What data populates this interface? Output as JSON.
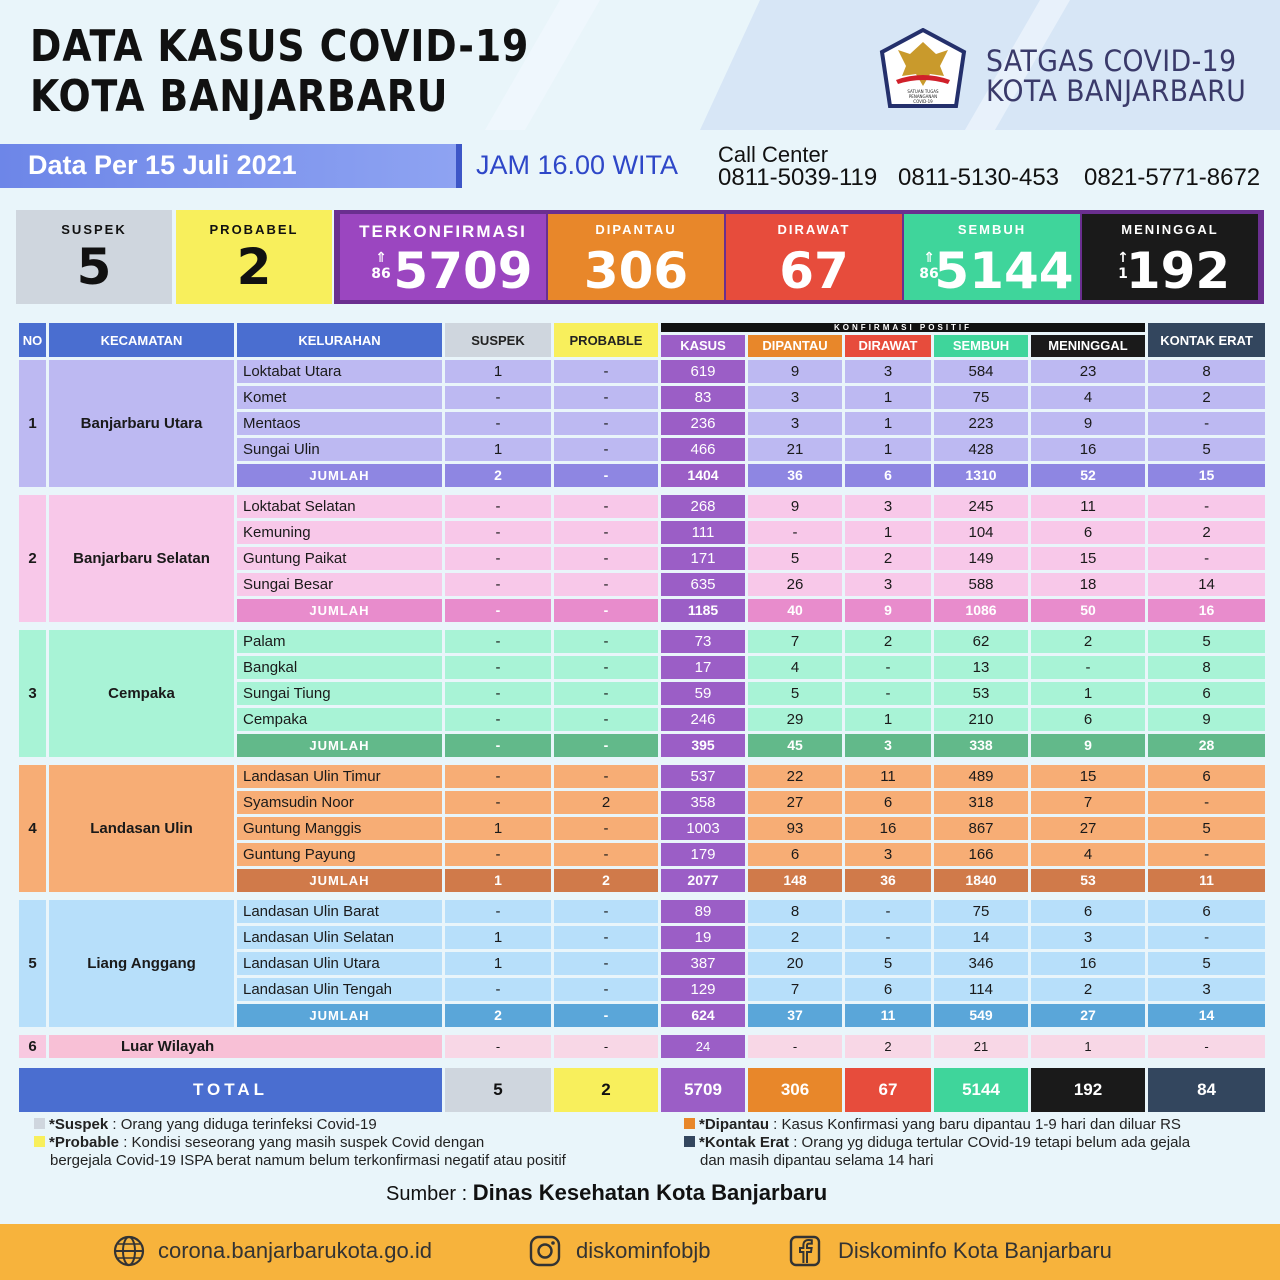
{
  "header": {
    "title_line1": "DATA KASUS COVID-19",
    "title_line2": "KOTA BANJARBARU",
    "org_line1": "SATGAS COVID-19",
    "org_line2": "KOTA BANJARBARU",
    "logo_text": "SATUAN TUGAS PENANGANAN COVID-19",
    "date": "Data Per 15 Juli 2021",
    "time": "JAM 16.00 WITA",
    "call_center_label": "Call Center",
    "call_center_numbers": [
      "0811-5039-119",
      "0811-5130-453",
      "0821-5771-8672"
    ]
  },
  "stats": {
    "suspek": {
      "label": "SUSPEK",
      "value": "5"
    },
    "probabel": {
      "label": "PROBABEL",
      "value": "2"
    },
    "terkonfirmasi": {
      "label": "TERKONFIRMASI",
      "value": "5709",
      "change": "86"
    },
    "dipantau": {
      "label": "DIPANTAU",
      "value": "306"
    },
    "dirawat": {
      "label": "DIRAWAT",
      "value": "67"
    },
    "sembuh": {
      "label": "SEMBUH",
      "value": "5144",
      "change": "86"
    },
    "meninggal": {
      "label": "MENINGGAL",
      "value": "192",
      "change": "1"
    }
  },
  "table": {
    "headers": {
      "no": "NO",
      "kecamatan": "KECAMATAN",
      "kelurahan": "KELURAHAN",
      "suspek": "SUSPEK",
      "probable": "PROBABLE",
      "konfirmasi_positif": "KONFIRMASI POSITIF",
      "kasus": "KASUS",
      "dipantau": "DIPANTAU",
      "dirawat": "DIRAWAT",
      "sembuh": "SEMBUH",
      "meninggal": "MENINGGAL",
      "kontak_erat": "KONTAK ERAT"
    },
    "groups": [
      {
        "no": "1",
        "kecamatan": "Banjarbaru Utara",
        "rows": [
          [
            "Loktabat Utara",
            "1",
            "-",
            "619",
            "9",
            "3",
            "584",
            "23",
            "8"
          ],
          [
            "Komet",
            "-",
            "-",
            "83",
            "3",
            "1",
            "75",
            "4",
            "2"
          ],
          [
            "Mentaos",
            "-",
            "-",
            "236",
            "3",
            "1",
            "223",
            "9",
            "-"
          ],
          [
            "Sungai Ulin",
            "1",
            "-",
            "466",
            "21",
            "1",
            "428",
            "16",
            "5"
          ]
        ],
        "jumlah": [
          "JUMLAH",
          "2",
          "-",
          "1404",
          "36",
          "6",
          "1310",
          "52",
          "15"
        ]
      },
      {
        "no": "2",
        "kecamatan": "Banjarbaru Selatan",
        "rows": [
          [
            "Loktabat Selatan",
            "-",
            "-",
            "268",
            "9",
            "3",
            "245",
            "11",
            "-"
          ],
          [
            "Kemuning",
            "-",
            "-",
            "111",
            "-",
            "1",
            "104",
            "6",
            "2"
          ],
          [
            "Guntung Paikat",
            "-",
            "-",
            "171",
            "5",
            "2",
            "149",
            "15",
            "-"
          ],
          [
            "Sungai Besar",
            "-",
            "-",
            "635",
            "26",
            "3",
            "588",
            "18",
            "14"
          ]
        ],
        "jumlah": [
          "JUMLAH",
          "-",
          "-",
          "1185",
          "40",
          "9",
          "1086",
          "50",
          "16"
        ]
      },
      {
        "no": "3",
        "kecamatan": "Cempaka",
        "rows": [
          [
            "Palam",
            "-",
            "-",
            "73",
            "7",
            "2",
            "62",
            "2",
            "5"
          ],
          [
            "Bangkal",
            "-",
            "-",
            "17",
            "4",
            "-",
            "13",
            "-",
            "8"
          ],
          [
            "Sungai Tiung",
            "-",
            "-",
            "59",
            "5",
            "-",
            "53",
            "1",
            "6"
          ],
          [
            "Cempaka",
            "-",
            "-",
            "246",
            "29",
            "1",
            "210",
            "6",
            "9"
          ]
        ],
        "jumlah": [
          "JUMLAH",
          "-",
          "-",
          "395",
          "45",
          "3",
          "338",
          "9",
          "28"
        ]
      },
      {
        "no": "4",
        "kecamatan": "Landasan Ulin",
        "rows": [
          [
            "Landasan Ulin Timur",
            "-",
            "-",
            "537",
            "22",
            "11",
            "489",
            "15",
            "6"
          ],
          [
            "Syamsudin Noor",
            "-",
            "2",
            "358",
            "27",
            "6",
            "318",
            "7",
            "-"
          ],
          [
            "Guntung Manggis",
            "1",
            "-",
            "1003",
            "93",
            "16",
            "867",
            "27",
            "5"
          ],
          [
            "Guntung Payung",
            "-",
            "-",
            "179",
            "6",
            "3",
            "166",
            "4",
            "-"
          ]
        ],
        "jumlah": [
          "JUMLAH",
          "1",
          "2",
          "2077",
          "148",
          "36",
          "1840",
          "53",
          "11"
        ]
      },
      {
        "no": "5",
        "kecamatan": "Liang Anggang",
        "rows": [
          [
            "Landasan Ulin Barat",
            "-",
            "-",
            "89",
            "8",
            "-",
            "75",
            "6",
            "6"
          ],
          [
            "Landasan Ulin Selatan",
            "1",
            "-",
            "19",
            "2",
            "-",
            "14",
            "3",
            "-"
          ],
          [
            "Landasan Ulin Utara",
            "1",
            "-",
            "387",
            "20",
            "5",
            "346",
            "16",
            "5"
          ],
          [
            "Landasan Ulin Tengah",
            "-",
            "-",
            "129",
            "7",
            "6",
            "114",
            "2",
            "3"
          ]
        ],
        "jumlah": [
          "JUMLAH",
          "2",
          "-",
          "624",
          "37",
          "11",
          "549",
          "27",
          "14"
        ]
      }
    ],
    "luar": {
      "no": "6",
      "label": "Luar Wilayah",
      "values": [
        "-",
        "-",
        "24",
        "-",
        "2",
        "21",
        "1",
        "-"
      ]
    },
    "total": {
      "label": "TOTAL",
      "values": [
        "5",
        "2",
        "5709",
        "306",
        "67",
        "5144",
        "192",
        "84"
      ]
    }
  },
  "legend": {
    "suspek_term": "*Suspek",
    "suspek_desc": " : Orang yang diduga terinfeksi Covid-19",
    "probable_term": "*Probable",
    "probable_desc": " : Kondisi seseorang yang masih suspek Covid dengan",
    "probable_desc2": "bergejala Covid-19 ISPA berat namum belum terkonfirmasi negatif atau positif",
    "dipantau_term": "*Dipantau",
    "dipantau_desc": " : Kasus Konfirmasi yang baru dipantau 1-9 hari dan diluar RS",
    "kontak_term": "*Kontak Erat",
    "kontak_desc": " : Orang yg diduga tertular COvid-19 tetapi belum ada gejala",
    "kontak_desc2": "dan masih dipantau selama 14 hari"
  },
  "source": {
    "label": "Sumber : ",
    "name": "Dinas Kesehatan Kota Banjarbaru"
  },
  "footer": {
    "website": "corona.banjarbarukota.go.id",
    "instagram": "diskominfobjb",
    "facebook": "Diskominfo Kota Banjarbaru"
  },
  "colors": {
    "group_light": [
      "#bdb9f2",
      "#f8c8e9",
      "#a8f3d6",
      "#f7ad75",
      "#b7dffa"
    ],
    "group_jumlah": [
      "#8e86e2",
      "#e88ccc",
      "#62b98a",
      "#d07a4a",
      "#5aa6d9"
    ],
    "kasus": "#9b5ec6",
    "dipantau": "#e8872a",
    "dirawat": "#e74c3c",
    "sembuh": "#3fd59b",
    "meninggal": "#1a1a1a",
    "kontak_erat": "#33465e",
    "header_blue": "#4a6ed0"
  }
}
